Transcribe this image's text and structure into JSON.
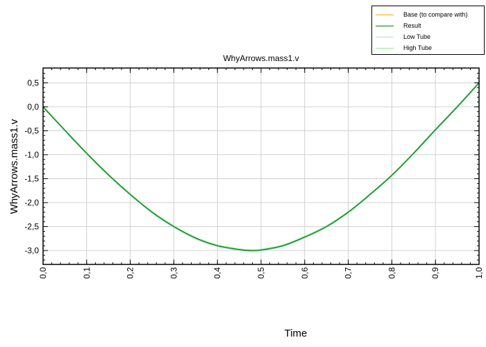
{
  "chart_data": {
    "type": "line",
    "title": "WhyArrows.mass1.v",
    "xlabel": "Time",
    "ylabel": "WhyArrows.mass1.v",
    "xlim": [
      0.0,
      1.0
    ],
    "ylim": [
      -3.29,
      0.81
    ],
    "grid": true,
    "legend_placement": "top-right, outside plot",
    "x_ticks": [
      "0,0",
      "0,1",
      "0,2",
      "0,3",
      "0,4",
      "0,5",
      "0,6",
      "0,7",
      "0,8",
      "0,9",
      "1,0"
    ],
    "x_tick_values": [
      0,
      0.1,
      0.2,
      0.3,
      0.4,
      0.5,
      0.6,
      0.7,
      0.8,
      0.9,
      1.0
    ],
    "y_ticks": [
      "0,5",
      "0,0",
      "-0,5",
      "-1,0",
      "-1,5",
      "-2,0",
      "-2,5",
      "-3,0"
    ],
    "y_tick_values": [
      0.5,
      0,
      -0.5,
      -1,
      -1.5,
      -2,
      -2.5,
      -3
    ],
    "x": [
      0,
      0.05,
      0.1,
      0.15,
      0.2,
      0.25,
      0.3,
      0.35,
      0.4,
      0.45,
      0.475,
      0.5,
      0.55,
      0.6,
      0.65,
      0.7,
      0.75,
      0.8,
      0.85,
      0.9,
      0.95,
      1.0
    ],
    "series": [
      {
        "name": "Base (to compare with)",
        "color": "#ffa500",
        "values": null
      },
      {
        "name": "Result",
        "color": "#008000",
        "values": [
          0,
          -0.49,
          -0.97,
          -1.42,
          -1.83,
          -2.2,
          -2.5,
          -2.74,
          -2.9,
          -2.98,
          -3.0,
          -2.99,
          -2.9,
          -2.72,
          -2.5,
          -2.2,
          -1.83,
          -1.43,
          -0.97,
          -0.48,
          0.0,
          0.5
        ]
      },
      {
        "name": "Low Tube",
        "color": "#add8e6",
        "values": [
          0,
          -0.49,
          -0.97,
          -1.42,
          -1.83,
          -2.2,
          -2.5,
          -2.74,
          -2.9,
          -2.98,
          -3.0,
          -2.99,
          -2.9,
          -2.72,
          -2.5,
          -2.2,
          -1.83,
          -1.43,
          -0.97,
          -0.48,
          0.0,
          0.5
        ]
      },
      {
        "name": "High Tube",
        "color": "#90ee90",
        "values": [
          0,
          -0.49,
          -0.97,
          -1.42,
          -1.83,
          -2.2,
          -2.5,
          -2.74,
          -2.9,
          -2.98,
          -3.0,
          -2.99,
          -2.9,
          -2.72,
          -2.5,
          -2.2,
          -1.83,
          -1.43,
          -0.97,
          -0.48,
          0.0,
          0.5
        ]
      }
    ]
  }
}
